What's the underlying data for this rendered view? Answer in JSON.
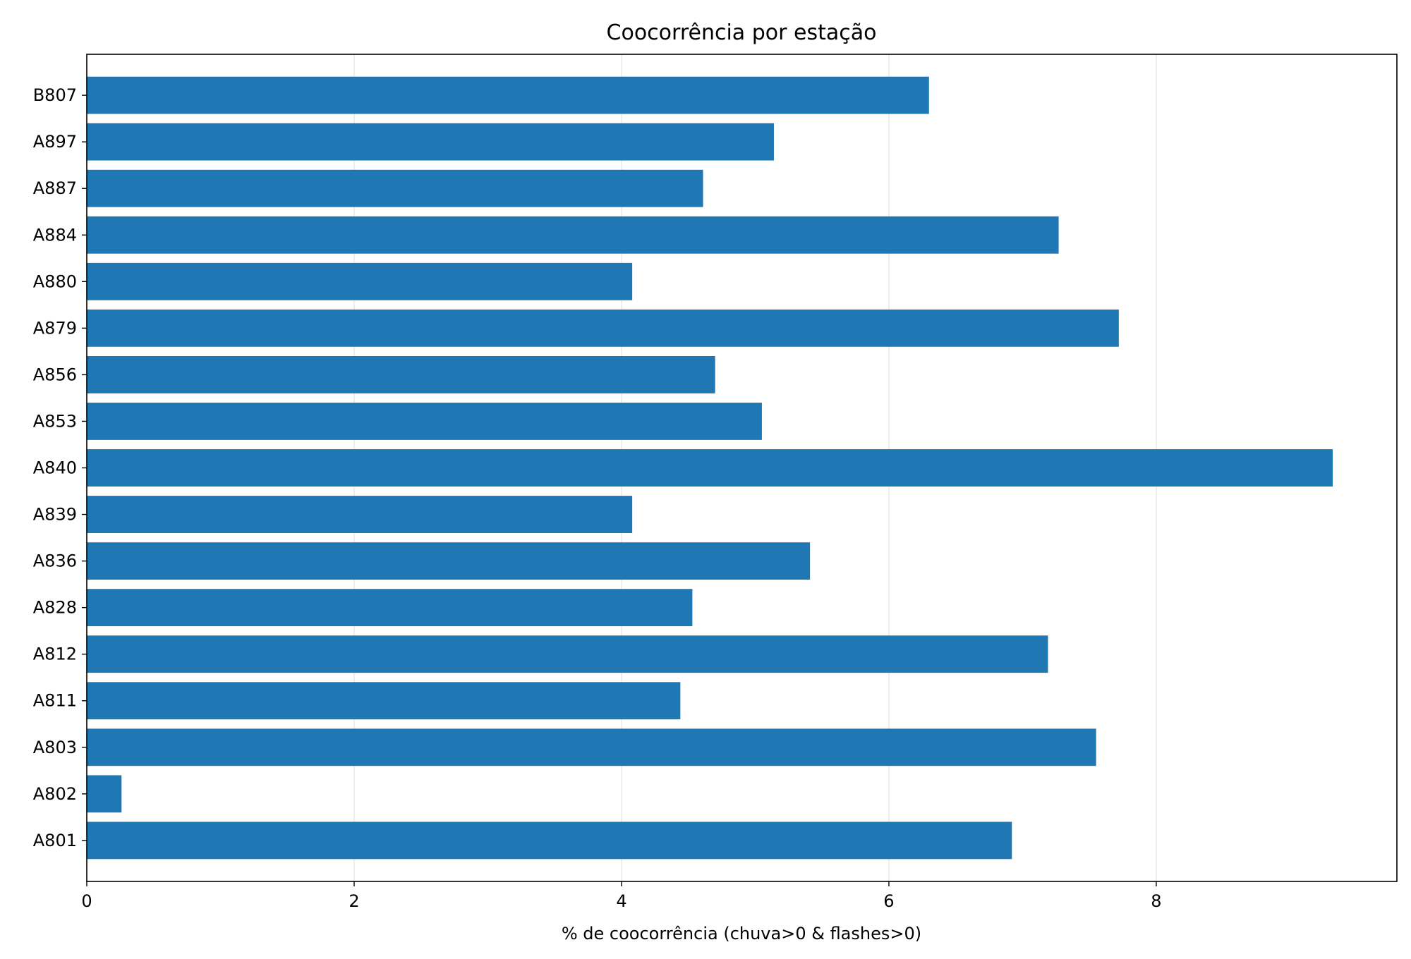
{
  "chart_data": {
    "type": "bar",
    "orientation": "horizontal",
    "title": "Coocorrência por estação",
    "xlabel": "% de coocorrência (chuva>0 & flashes>0)",
    "ylabel": "",
    "xlim": [
      0,
      9.8
    ],
    "xticks": [
      0,
      2,
      4,
      6,
      8
    ],
    "xtick_labels": [
      "0",
      "2",
      "4",
      "6",
      "8"
    ],
    "grid": "x",
    "categories": [
      "A801",
      "A802",
      "A803",
      "A811",
      "A812",
      "A828",
      "A836",
      "A839",
      "A840",
      "A853",
      "A856",
      "A879",
      "A880",
      "A884",
      "A887",
      "A897",
      "B807"
    ],
    "values": [
      6.92,
      0.26,
      7.55,
      4.44,
      7.19,
      4.53,
      5.41,
      4.08,
      9.32,
      5.05,
      4.7,
      7.72,
      4.08,
      7.27,
      4.61,
      5.14,
      6.3
    ],
    "bar_color": "#1f77b4"
  }
}
